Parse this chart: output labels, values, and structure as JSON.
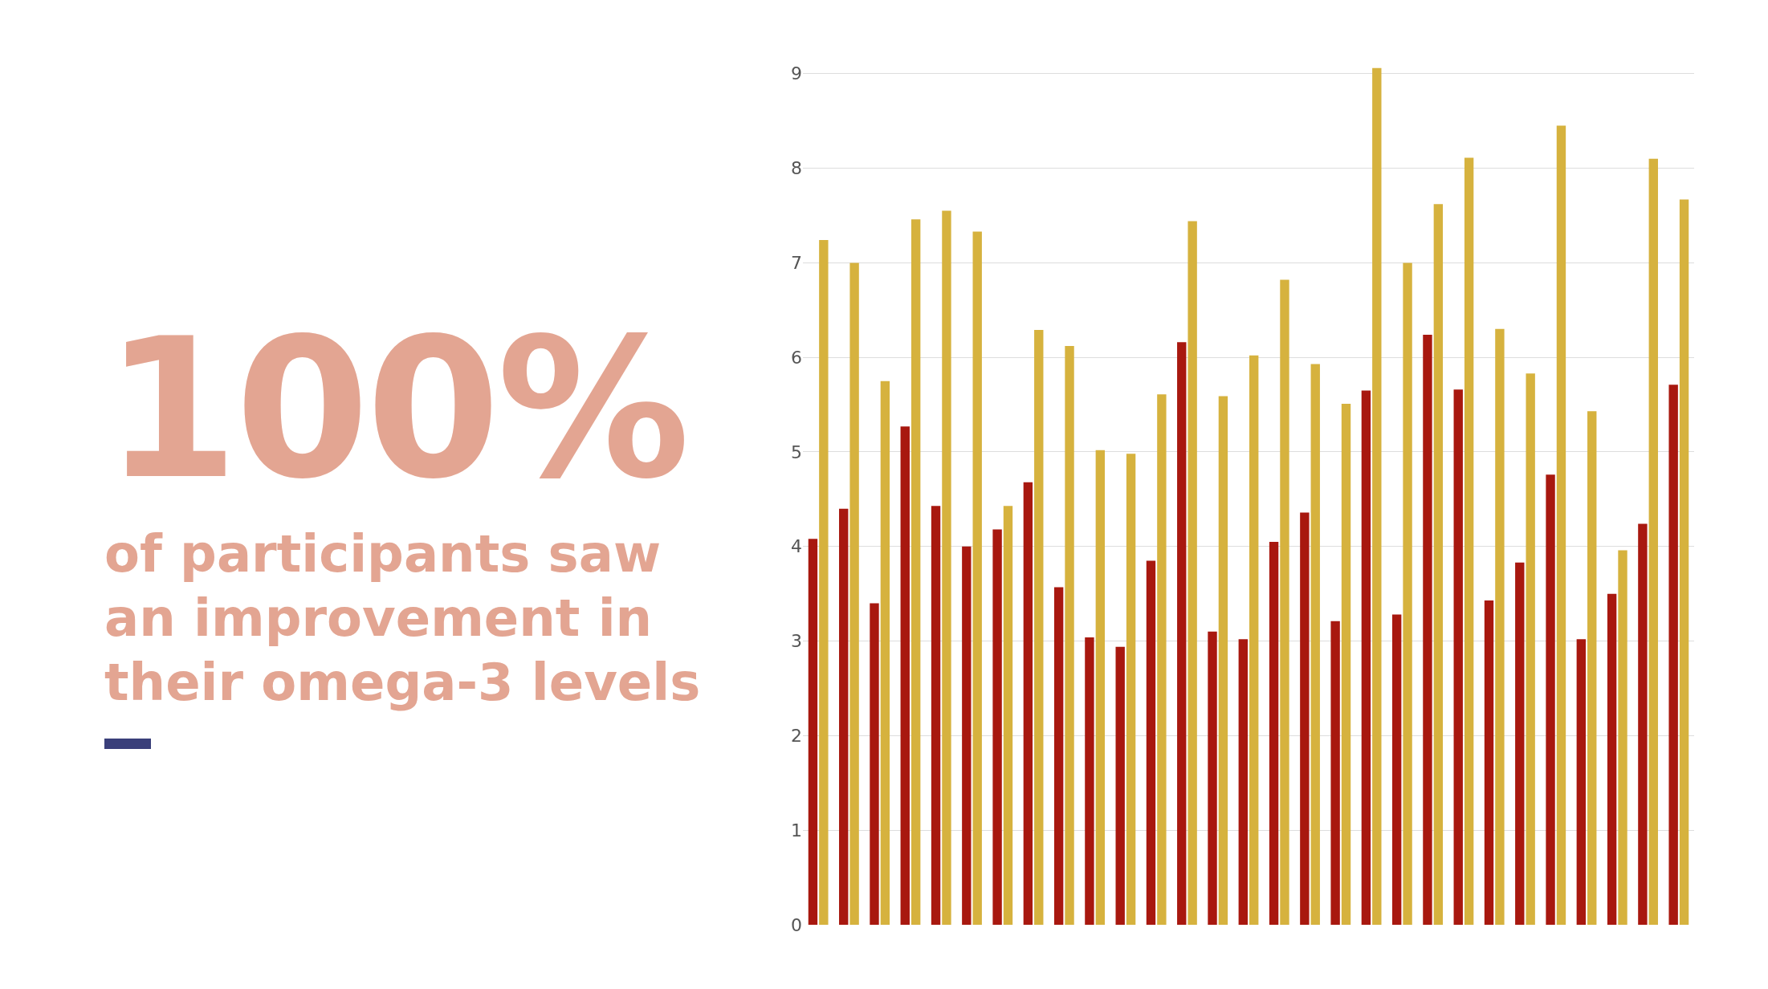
{
  "chart_data": {
    "type": "bar",
    "title": "100%",
    "subtitle": "of participants saw an improvement in their omega-3 levels",
    "categories": [
      null,
      null,
      null,
      null,
      null,
      null,
      null,
      null,
      null,
      null,
      null,
      null,
      null,
      null,
      null,
      null,
      null,
      null,
      null,
      null,
      null,
      null,
      null,
      null,
      null,
      null,
      null,
      null,
      null
    ],
    "series": [
      {
        "color": "#a8180f",
        "values": [
          4.08,
          4.4,
          3.4,
          5.27,
          4.43,
          4.0,
          4.18,
          4.68,
          3.57,
          3.04,
          2.94,
          3.85,
          6.16,
          3.1,
          3.02,
          4.05,
          4.36,
          3.21,
          5.65,
          3.28,
          6.24,
          5.66,
          3.43,
          3.83,
          4.76,
          3.02,
          3.5,
          4.24,
          5.71
        ]
      },
      {
        "color": "#d6b23e",
        "values": [
          7.24,
          7.0,
          5.75,
          7.46,
          7.55,
          7.33,
          4.43,
          6.29,
          6.12,
          5.02,
          4.98,
          5.61,
          7.44,
          5.59,
          6.02,
          6.82,
          5.93,
          5.51,
          9.06,
          7.0,
          7.62,
          8.11,
          6.3,
          5.83,
          8.45,
          5.43,
          3.96,
          8.1,
          7.67
        ]
      }
    ],
    "ylim": [
      0,
      9.1
    ],
    "yticks": [
      0,
      1,
      2,
      3,
      4,
      5,
      6,
      7,
      8,
      9
    ],
    "grid": "y",
    "tick_labels": "y"
  }
}
